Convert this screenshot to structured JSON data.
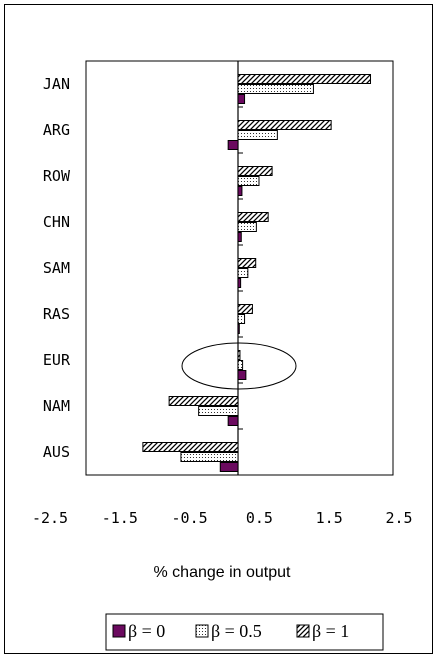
{
  "colors": {
    "beta0": "#6b0a5f",
    "outline": "#000000",
    "background": "#ffffff"
  },
  "chart_data": {
    "type": "bar",
    "orientation": "horizontal",
    "categories": [
      "JAN",
      "ARG",
      "ROW",
      "CHN",
      "SAM",
      "RAS",
      "EUR",
      "NAM",
      "AUS"
    ],
    "series": [
      {
        "name": "β = 0",
        "fill": "solid",
        "values": [
          0.1,
          -0.15,
          0.06,
          0.05,
          0.04,
          0.02,
          0.12,
          -0.15,
          -0.27
        ]
      },
      {
        "name": "β = 0.5",
        "fill": "dotted",
        "values": [
          1.15,
          0.6,
          0.32,
          0.28,
          0.15,
          0.1,
          0.07,
          -0.6,
          -0.87
        ]
      },
      {
        "name": "β = 1",
        "fill": "hatched",
        "values": [
          2.02,
          1.42,
          0.52,
          0.46,
          0.27,
          0.22,
          0.03,
          -1.05,
          -1.45
        ]
      }
    ],
    "xlabel": "% change in output",
    "xlim": [
      -2.5,
      2.5
    ],
    "xticks": [
      "-2.5",
      "-1.5",
      "-0.5",
      "0.5",
      "1.5",
      "2.5"
    ],
    "grid": false,
    "legend_position": "bottom",
    "annotation": "ellipse around EUR"
  }
}
